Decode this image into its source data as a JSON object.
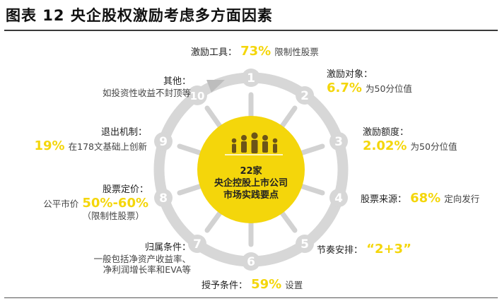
{
  "title": "图表 12 央企股权激励考虑多方面因素",
  "center": {
    "line1": "22家",
    "line2": "央企控股上市公司",
    "line3": "市场实践要点"
  },
  "nodes": [
    {
      "num": "1",
      "key": "激励工具：",
      "pct": "73%",
      "desc": "限制性股票"
    },
    {
      "num": "2",
      "key": "激励对象：",
      "pct": "6.7%",
      "desc": "为50分位值"
    },
    {
      "num": "3",
      "key": "激励额度：",
      "pct": "2.02%",
      "desc": "为50分位值"
    },
    {
      "num": "4",
      "key": "股票来源：",
      "pct": "68%",
      "desc": "定向发行"
    },
    {
      "num": "5",
      "key": "节奏安排：",
      "pct": "“2+3”",
      "desc": ""
    },
    {
      "num": "6",
      "key": "授予条件：",
      "pct": "59%",
      "desc": "设置"
    },
    {
      "num": "7",
      "key": "归属条件：",
      "pct": "",
      "desc": "一般包括净资产收益率、",
      "desc2": "净利润增长率和EVA等"
    },
    {
      "num": "8",
      "key": "股票定价：",
      "pct": "50%-60%",
      "desc": "公平市价",
      "desc2": "（限制性股票）"
    },
    {
      "num": "9",
      "key": "退出机制：",
      "pct": "19%",
      "desc": "在178文基础上创新"
    },
    {
      "num": "10",
      "key": "其他：",
      "pct": "",
      "desc": "如投资性收益不封顶等"
    }
  ],
  "colors": {
    "accent": "#f4d60b",
    "ring": "#d7d7d7",
    "text": "#222222"
  }
}
